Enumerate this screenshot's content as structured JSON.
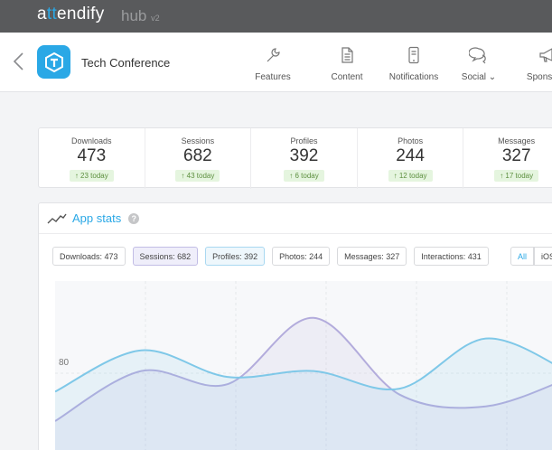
{
  "brand": {
    "logo_prefix": "a",
    "logo_accent": "tt",
    "logo_suffix": "endify",
    "hub": "hub",
    "hub_version": "v2"
  },
  "header": {
    "app_title": "Tech Conference"
  },
  "nav": [
    {
      "label": "Features",
      "icon": "wrench-icon"
    },
    {
      "label": "Content",
      "icon": "document-icon"
    },
    {
      "label": "Notifications",
      "icon": "phone-icon"
    },
    {
      "label": "Social ⌄",
      "icon": "chat-bubble-icon"
    },
    {
      "label": "Spons. Po",
      "icon": "megaphone-icon"
    }
  ],
  "stats": [
    {
      "label": "Downloads",
      "value": "473",
      "today": "↑ 23 today"
    },
    {
      "label": "Sessions",
      "value": "682",
      "today": "↑ 43 today"
    },
    {
      "label": "Profiles",
      "value": "392",
      "today": "↑ 6 today"
    },
    {
      "label": "Photos",
      "value": "244",
      "today": "↑ 12 today"
    },
    {
      "label": "Messages",
      "value": "327",
      "today": "↑ 17 today"
    }
  ],
  "panel": {
    "title": "App stats",
    "help": "?",
    "chips": [
      "Downloads: 473",
      "Sessions: 682",
      "Profiles: 392",
      "Photos: 244",
      "Messages: 327",
      "Interactions: 431"
    ],
    "segments": [
      "All",
      "iOS"
    ]
  },
  "chart_data": {
    "type": "area",
    "y_tick_label": "80",
    "series": [
      {
        "color": "#7fc8e8",
        "values": [
          50,
          78,
          60,
          64,
          52,
          86,
          62
        ]
      },
      {
        "color": "#b3acdc",
        "values": [
          30,
          64,
          55,
          100,
          48,
          40,
          60
        ]
      }
    ]
  },
  "colors": {
    "accent": "#2aa8e6",
    "brandbar": "#595a5c",
    "badge_bg": "#e5f5df"
  }
}
